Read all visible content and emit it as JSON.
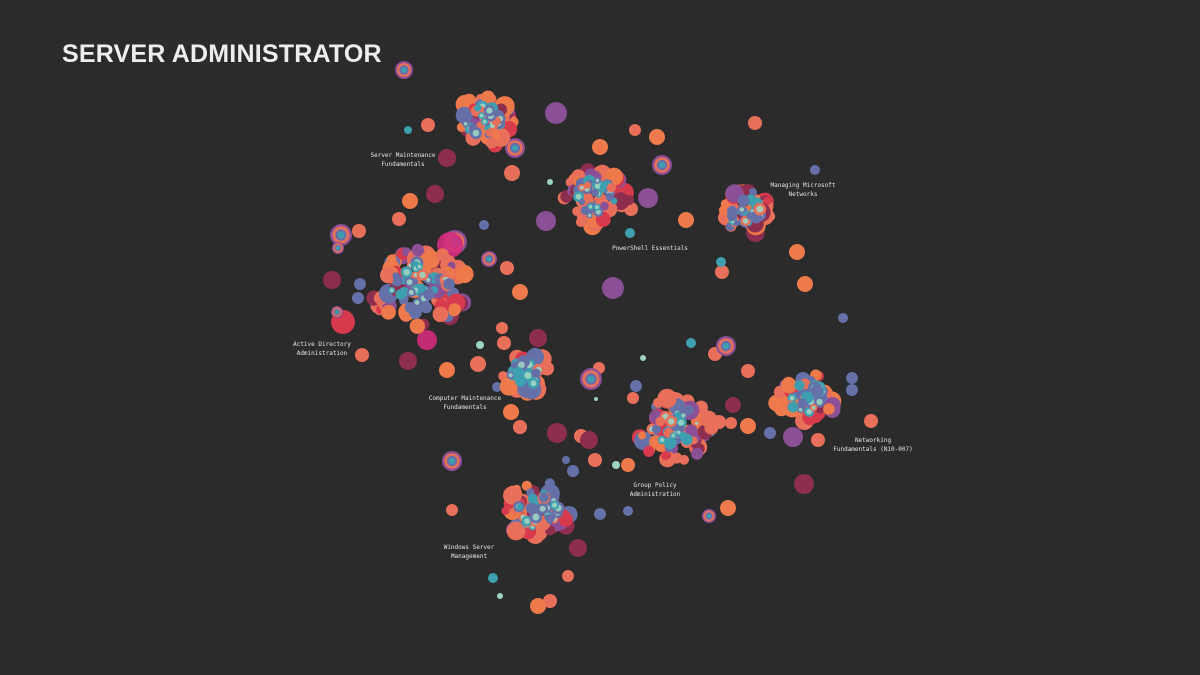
{
  "title": "SERVER ADMINISTRATOR",
  "palette": {
    "background": "#2b2b2b",
    "coral": "#e8705a",
    "orange": "#ee7a4c",
    "slate_blue": "#6670a8",
    "purple": "#8b4f96",
    "maroon": "#8e2e4f",
    "crimson": "#d63a4c",
    "magenta": "#d42c7c",
    "teal": "#3e9fb0",
    "mint": "#9fd4c2"
  },
  "clusters": [
    {
      "id": "server-maintenance",
      "lines": [
        "Server Maintenance",
        "Fundamentals"
      ],
      "density": 0.9
    },
    {
      "id": "powershell",
      "lines": [
        "PowerShell Essentials"
      ],
      "density": 0.9
    },
    {
      "id": "managing-networks",
      "lines": [
        "Managing Microsoft",
        "Networks"
      ],
      "density": 0.8
    },
    {
      "id": "active-directory",
      "lines": [
        "Active Directory",
        "Administration"
      ],
      "density": 1.3
    },
    {
      "id": "computer-maintenance",
      "lines": [
        "Computer Maintenance",
        "Fundamentals"
      ],
      "density": 0.7
    },
    {
      "id": "group-policy",
      "lines": [
        "Group Policy",
        "Administration"
      ],
      "density": 1.0
    },
    {
      "id": "networking-fundamentals",
      "lines": [
        "Networking",
        "Fundamentals (N10-007)"
      ],
      "density": 0.9
    },
    {
      "id": "windows-server",
      "lines": [
        "Windows Server",
        "Management"
      ],
      "density": 1.0
    }
  ]
}
